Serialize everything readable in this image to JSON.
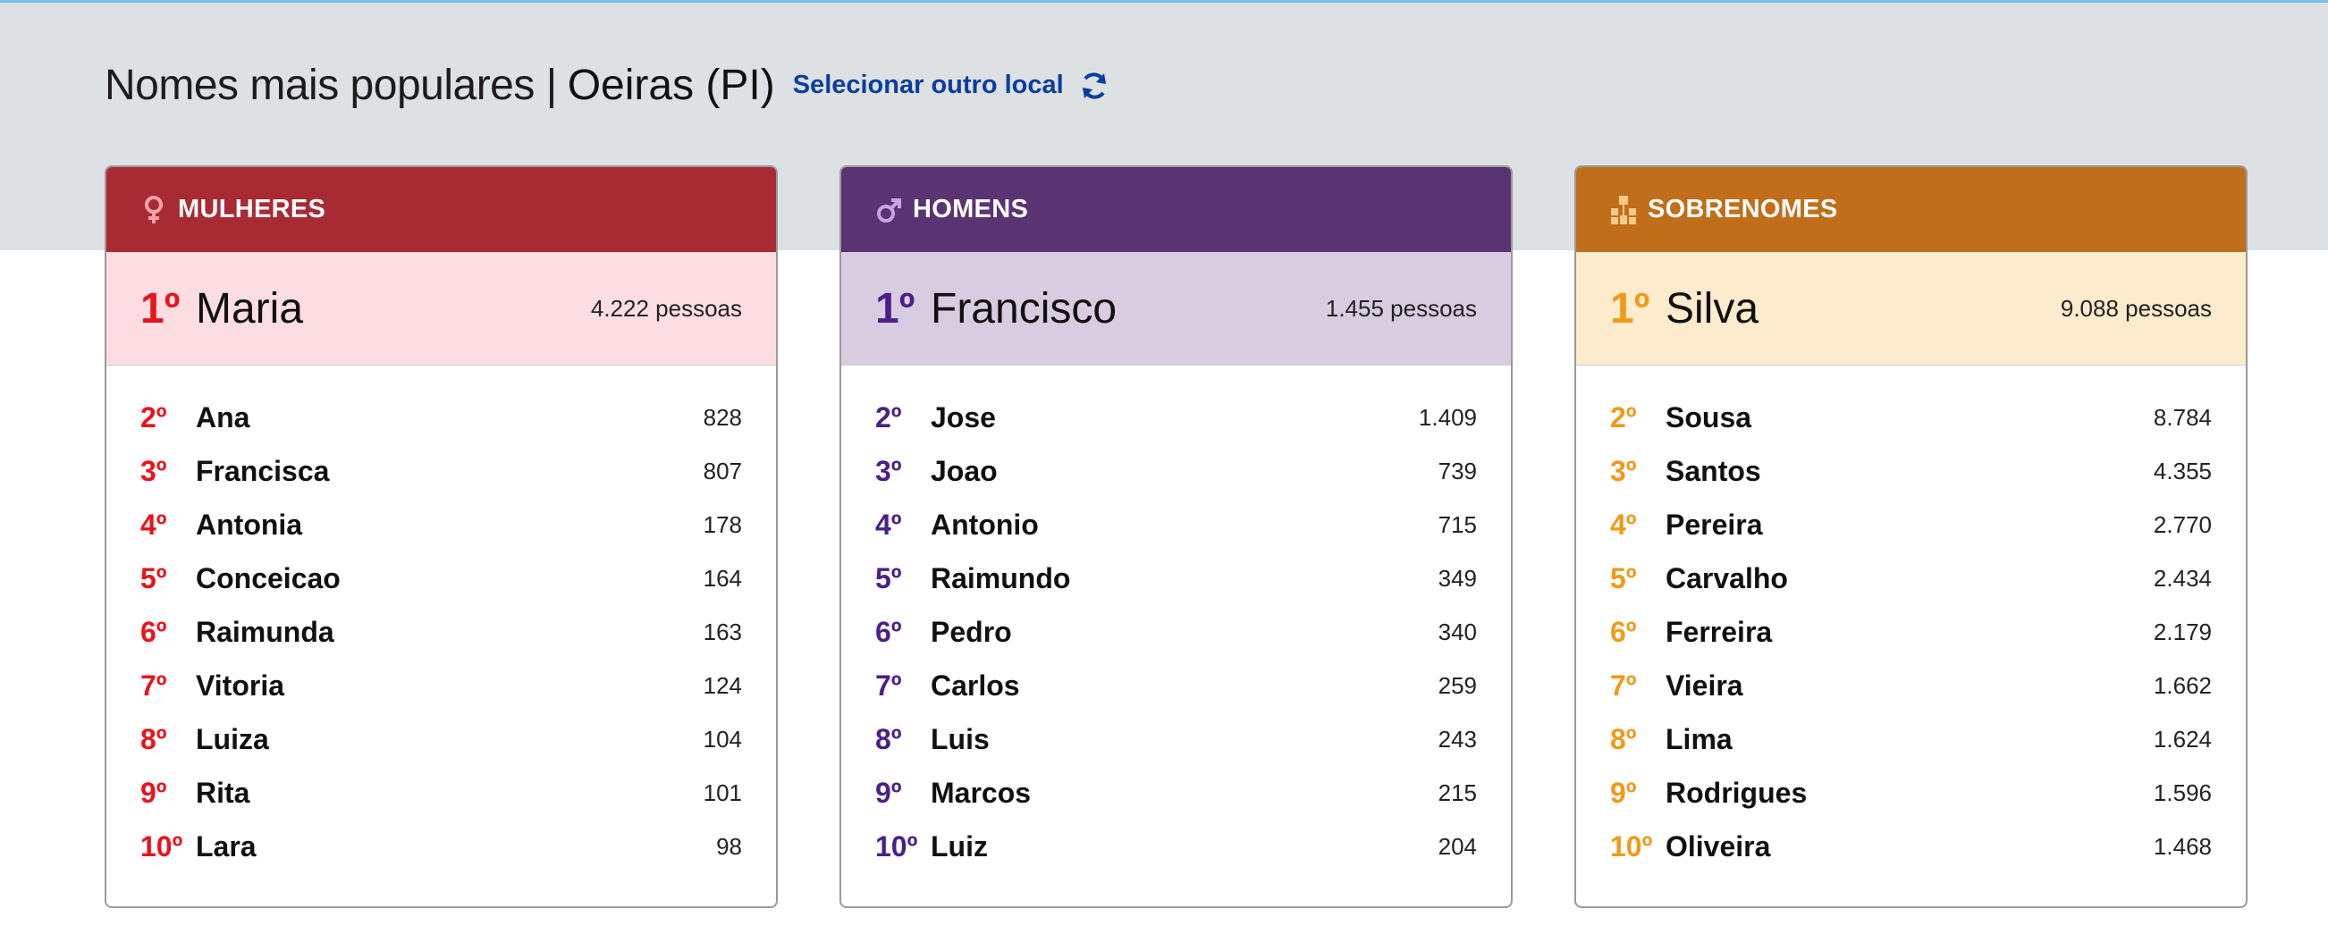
{
  "header": {
    "title": "Nomes mais populares |",
    "location": "Oeiras (PI)",
    "change_link": "Selecionar outro local",
    "refresh_icon": "refresh-icon"
  },
  "colors": {
    "women_head": "#a82a33",
    "women_top_bg": "#fcdde2",
    "women_rank": "#e8141c",
    "men_head": "#5a3372",
    "men_top_bg": "#d8cce0",
    "men_rank": "#4a1f8a",
    "surname_head": "#c06e1a",
    "surname_top_bg": "#fcebcc",
    "surname_rank": "#f09a1a"
  },
  "cards": [
    {
      "key": "women",
      "title": "MULHERES",
      "icon": "female-icon",
      "top": {
        "rank": "1º",
        "name": "Maria",
        "count": "4.222 pessoas"
      },
      "rows": [
        {
          "rank": "2º",
          "name": "Ana",
          "count": "828"
        },
        {
          "rank": "3º",
          "name": "Francisca",
          "count": "807"
        },
        {
          "rank": "4º",
          "name": "Antonia",
          "count": "178"
        },
        {
          "rank": "5º",
          "name": "Conceicao",
          "count": "164"
        },
        {
          "rank": "6º",
          "name": "Raimunda",
          "count": "163"
        },
        {
          "rank": "7º",
          "name": "Vitoria",
          "count": "124"
        },
        {
          "rank": "8º",
          "name": "Luiza",
          "count": "104"
        },
        {
          "rank": "9º",
          "name": "Rita",
          "count": "101"
        },
        {
          "rank": "10º",
          "name": "Lara",
          "count": "98"
        }
      ]
    },
    {
      "key": "men",
      "title": "HOMENS",
      "icon": "male-icon",
      "top": {
        "rank": "1º",
        "name": "Francisco",
        "count": "1.455 pessoas"
      },
      "rows": [
        {
          "rank": "2º",
          "name": "Jose",
          "count": "1.409"
        },
        {
          "rank": "3º",
          "name": "Joao",
          "count": "739"
        },
        {
          "rank": "4º",
          "name": "Antonio",
          "count": "715"
        },
        {
          "rank": "5º",
          "name": "Raimundo",
          "count": "349"
        },
        {
          "rank": "6º",
          "name": "Pedro",
          "count": "340"
        },
        {
          "rank": "7º",
          "name": "Carlos",
          "count": "259"
        },
        {
          "rank": "8º",
          "name": "Luis",
          "count": "243"
        },
        {
          "rank": "9º",
          "name": "Marcos",
          "count": "215"
        },
        {
          "rank": "10º",
          "name": "Luiz",
          "count": "204"
        }
      ]
    },
    {
      "key": "surnames",
      "title": "SOBRENOMES",
      "icon": "family-tree-icon",
      "top": {
        "rank": "1º",
        "name": "Silva",
        "count": "9.088 pessoas"
      },
      "rows": [
        {
          "rank": "2º",
          "name": "Sousa",
          "count": "8.784"
        },
        {
          "rank": "3º",
          "name": "Santos",
          "count": "4.355"
        },
        {
          "rank": "4º",
          "name": "Pereira",
          "count": "2.770"
        },
        {
          "rank": "5º",
          "name": "Carvalho",
          "count": "2.434"
        },
        {
          "rank": "6º",
          "name": "Ferreira",
          "count": "2.179"
        },
        {
          "rank": "7º",
          "name": "Vieira",
          "count": "1.662"
        },
        {
          "rank": "8º",
          "name": "Lima",
          "count": "1.624"
        },
        {
          "rank": "9º",
          "name": "Rodrigues",
          "count": "1.596"
        },
        {
          "rank": "10º",
          "name": "Oliveira",
          "count": "1.468"
        }
      ]
    }
  ]
}
